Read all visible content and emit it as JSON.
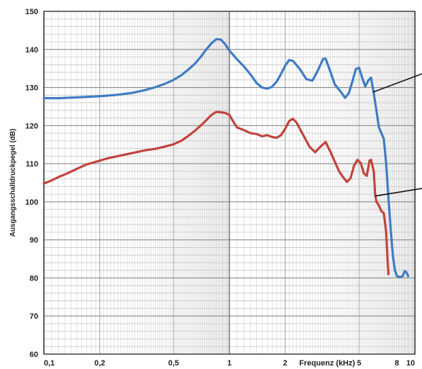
{
  "chart_data": {
    "type": "line",
    "xscale": "log",
    "xlim": [
      0.1,
      10
    ],
    "ylim": [
      60,
      150
    ],
    "ylabel": "Ausgangsschalldruckpegel (dB)",
    "xlabel": "Frequenz (kHz)",
    "grid": true,
    "yticks": [
      "60",
      "70",
      "80",
      "90",
      "100",
      "110",
      "120",
      "130",
      "140",
      "150"
    ],
    "xticks": [
      {
        "value": 0.1,
        "label": "0,1"
      },
      {
        "value": 0.2,
        "label": "0,2"
      },
      {
        "value": 0.5,
        "label": "0,5"
      },
      {
        "value": 1,
        "label": "1"
      },
      {
        "value": 2,
        "label": "2"
      },
      {
        "value": 5,
        "label": "5"
      },
      {
        "value": 8,
        "label": "8"
      },
      {
        "value": 10,
        "label": "10"
      }
    ],
    "series": [
      {
        "color": "#3f7cc4",
        "points": [
          [
            0.1,
            127.2
          ],
          [
            0.12,
            127.2
          ],
          [
            0.15,
            127.4
          ],
          [
            0.2,
            127.7
          ],
          [
            0.25,
            128.1
          ],
          [
            0.3,
            128.6
          ],
          [
            0.35,
            129.3
          ],
          [
            0.4,
            130.1
          ],
          [
            0.45,
            131.0
          ],
          [
            0.5,
            132.0
          ],
          [
            0.55,
            133.2
          ],
          [
            0.6,
            134.7
          ],
          [
            0.65,
            136.2
          ],
          [
            0.7,
            138.0
          ],
          [
            0.75,
            140.0
          ],
          [
            0.8,
            141.6
          ],
          [
            0.85,
            142.7
          ],
          [
            0.9,
            142.6
          ],
          [
            0.95,
            141.3
          ],
          [
            1.0,
            139.7
          ],
          [
            1.1,
            137.4
          ],
          [
            1.2,
            135.5
          ],
          [
            1.3,
            133.4
          ],
          [
            1.4,
            131.2
          ],
          [
            1.5,
            130.0
          ],
          [
            1.6,
            129.7
          ],
          [
            1.7,
            130.2
          ],
          [
            1.8,
            131.6
          ],
          [
            1.9,
            133.6
          ],
          [
            2.0,
            135.8
          ],
          [
            2.1,
            137.2
          ],
          [
            2.2,
            137.0
          ],
          [
            2.4,
            134.8
          ],
          [
            2.6,
            132.2
          ],
          [
            2.8,
            131.8
          ],
          [
            3.0,
            134.5
          ],
          [
            3.2,
            137.5
          ],
          [
            3.3,
            137.6
          ],
          [
            3.5,
            134.2
          ],
          [
            3.7,
            130.8
          ],
          [
            4.0,
            128.8
          ],
          [
            4.2,
            127.3
          ],
          [
            4.4,
            128.5
          ],
          [
            4.6,
            131.5
          ],
          [
            4.8,
            134.8
          ],
          [
            5.0,
            135.2
          ],
          [
            5.2,
            132.5
          ],
          [
            5.4,
            130.3
          ],
          [
            5.6,
            131.8
          ],
          [
            5.8,
            132.6
          ],
          [
            6.0,
            128.5
          ],
          [
            6.2,
            124.0
          ],
          [
            6.4,
            119.5
          ],
          [
            6.6,
            118.0
          ],
          [
            6.8,
            116.5
          ],
          [
            7.0,
            110.0
          ],
          [
            7.2,
            101.0
          ],
          [
            7.4,
            93.0
          ],
          [
            7.6,
            86.0
          ],
          [
            7.8,
            82.0
          ],
          [
            8.0,
            80.5
          ],
          [
            8.3,
            80.2
          ],
          [
            8.6,
            80.5
          ],
          [
            8.8,
            81.8
          ],
          [
            9.0,
            81.5
          ],
          [
            9.2,
            80.5
          ]
        ]
      },
      {
        "color": "#c1443c",
        "points": [
          [
            0.1,
            104.8
          ],
          [
            0.11,
            105.6
          ],
          [
            0.12,
            106.5
          ],
          [
            0.13,
            107.2
          ],
          [
            0.15,
            108.6
          ],
          [
            0.17,
            109.8
          ],
          [
            0.2,
            110.8
          ],
          [
            0.22,
            111.4
          ],
          [
            0.25,
            112.0
          ],
          [
            0.3,
            112.8
          ],
          [
            0.35,
            113.5
          ],
          [
            0.4,
            113.9
          ],
          [
            0.45,
            114.5
          ],
          [
            0.5,
            115.1
          ],
          [
            0.55,
            116.0
          ],
          [
            0.6,
            117.3
          ],
          [
            0.65,
            118.6
          ],
          [
            0.7,
            120.0
          ],
          [
            0.75,
            121.4
          ],
          [
            0.8,
            122.8
          ],
          [
            0.85,
            123.6
          ],
          [
            0.9,
            123.5
          ],
          [
            0.95,
            123.3
          ],
          [
            1.0,
            122.8
          ],
          [
            1.05,
            121.0
          ],
          [
            1.1,
            119.5
          ],
          [
            1.2,
            118.8
          ],
          [
            1.3,
            118.0
          ],
          [
            1.4,
            117.8
          ],
          [
            1.5,
            117.2
          ],
          [
            1.6,
            117.5
          ],
          [
            1.7,
            117.0
          ],
          [
            1.8,
            116.8
          ],
          [
            1.9,
            117.5
          ],
          [
            2.0,
            119.2
          ],
          [
            2.1,
            121.2
          ],
          [
            2.2,
            121.8
          ],
          [
            2.3,
            120.8
          ],
          [
            2.5,
            117.5
          ],
          [
            2.7,
            114.5
          ],
          [
            2.9,
            113.0
          ],
          [
            3.1,
            114.5
          ],
          [
            3.3,
            115.7
          ],
          [
            3.5,
            113.2
          ],
          [
            3.7,
            110.5
          ],
          [
            3.9,
            108.0
          ],
          [
            4.1,
            106.5
          ],
          [
            4.3,
            105.2
          ],
          [
            4.5,
            106.2
          ],
          [
            4.7,
            109.5
          ],
          [
            4.9,
            111.0
          ],
          [
            5.1,
            110.2
          ],
          [
            5.3,
            107.5
          ],
          [
            5.5,
            106.8
          ],
          [
            5.7,
            110.8
          ],
          [
            5.8,
            111.0
          ],
          [
            6.0,
            108.0
          ],
          [
            6.1,
            102.0
          ],
          [
            6.2,
            100.0
          ],
          [
            6.4,
            99.0
          ],
          [
            6.6,
            97.5
          ],
          [
            6.8,
            97.0
          ],
          [
            7.0,
            92.0
          ],
          [
            7.1,
            86.0
          ],
          [
            7.2,
            81.0
          ]
        ]
      }
    ],
    "annotation_lines": [
      {
        "x1": 5.95,
        "y1": 128.8,
        "x2": 10,
        "y2": 133.6
      },
      {
        "x1": 6.1,
        "y1": 101.5,
        "x2": 10,
        "y2": 103.5
      }
    ]
  }
}
